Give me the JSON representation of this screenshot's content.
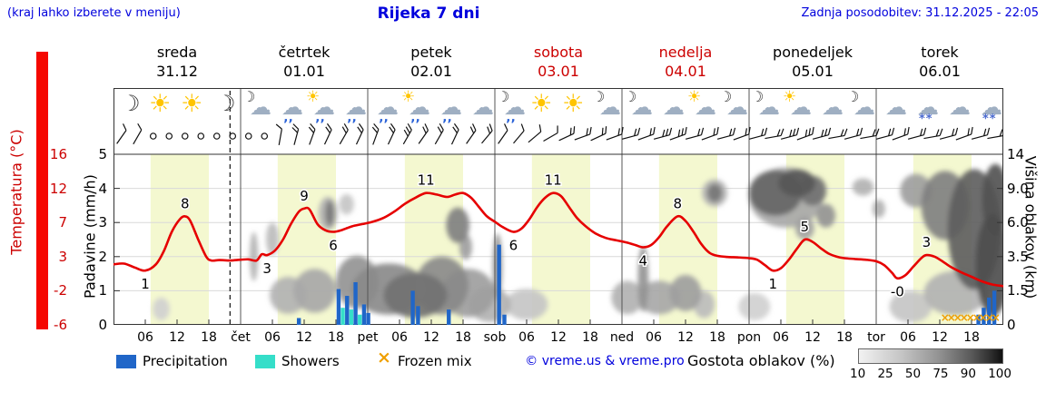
{
  "header": {
    "hint": "(kraj lahko izberete v meniju)",
    "title": "Rijeka 7 dni",
    "updated": "Zadnja posodobitev: 31.12.2025 - 22:05"
  },
  "axes": {
    "temp_title": "Temperatura (°C)",
    "temp_ticks": [
      "16",
      "12",
      "7",
      "3",
      "-2",
      "-6"
    ],
    "precip_title": "Padavine (mm/h)",
    "precip_ticks": [
      "5",
      "4",
      "3",
      "2",
      "1",
      "0"
    ],
    "cloud_title": "Višina oblakov (km)",
    "cloud_ticks": [
      "14",
      "9.0",
      "6.0",
      "3.5",
      "1.5",
      "0"
    ]
  },
  "days": [
    {
      "name": "sreda",
      "date": "31.12",
      "color": "#000000",
      "icons": [
        "moon",
        "sun",
        "sun",
        "moon"
      ]
    },
    {
      "name": "četrtek",
      "date": "01.01",
      "color": "#000000",
      "icons": [
        "moon-cloud",
        "rain",
        "sun-rain",
        "rain"
      ]
    },
    {
      "name": "petek",
      "date": "02.01",
      "color": "#000000",
      "icons": [
        "rain",
        "sun-rain",
        "rain",
        "cloud"
      ]
    },
    {
      "name": "sobota",
      "date": "03.01",
      "color": "#cc0000",
      "icons": [
        "moon-rain",
        "sun",
        "sun",
        "moon-cloud"
      ]
    },
    {
      "name": "nedelja",
      "date": "04.01",
      "color": "#cc0000",
      "icons": [
        "moon-cloud",
        "cloud",
        "sun-cloud",
        "moon-cloud"
      ]
    },
    {
      "name": "ponedeljek",
      "date": "05.01",
      "color": "#000000",
      "icons": [
        "moon-cloud",
        "sun-cloud",
        "cloud",
        "moon-cloud"
      ]
    },
    {
      "name": "torek",
      "date": "06.01",
      "color": "#000000",
      "icons": [
        "cloud",
        "snow",
        "cloud",
        "snow"
      ]
    }
  ],
  "legend": {
    "precipitation": "Precipitation",
    "showers": "Showers",
    "frozen": "Frozen mix",
    "frozen_symbol": "×",
    "copyright": "© vreme.us & vreme.pro",
    "cloud_density": "Gostota oblakov (%)",
    "density_ticks": [
      "10",
      "25",
      "50",
      "75",
      "90",
      "100"
    ]
  },
  "colors": {
    "blue_text": "#0000dd",
    "red_text": "#cc0000",
    "curve_red": "#e60000",
    "precip_blue": "#2066c8",
    "shower_cyan": "#35dec9",
    "frozen_orange": "#ef9f00",
    "band_yellow": "#f4f8d0",
    "strip_red": "#f50800",
    "grid_gray": "#d9d9d9"
  },
  "chart_data": {
    "type": "line",
    "title": "Rijeka 7 dni",
    "hours_total": 168,
    "temp_scale": {
      "min": -6,
      "max": 16
    },
    "mm_scale": {
      "min": 0,
      "max": 5
    },
    "km_ticks": [
      0,
      1.5,
      3.5,
      6,
      9,
      14
    ],
    "day_band_hours": [
      7,
      18
    ],
    "now_line_hour": 22,
    "temperature_points": [
      [
        0,
        1.8
      ],
      [
        2,
        1.9
      ],
      [
        4,
        1.4
      ],
      [
        6,
        1
      ],
      [
        8,
        1.8
      ],
      [
        9.5,
        3.5
      ],
      [
        11,
        6
      ],
      [
        12.5,
        7.6
      ],
      [
        13.5,
        8
      ],
      [
        14.5,
        7.4
      ],
      [
        16,
        5
      ],
      [
        17.5,
        2.8
      ],
      [
        18.5,
        2.3
      ],
      [
        20,
        2.35
      ],
      [
        22,
        2.3
      ],
      [
        24,
        2.4
      ],
      [
        25.5,
        2.45
      ],
      [
        27,
        2.3
      ],
      [
        28,
        3.1
      ],
      [
        29,
        3
      ],
      [
        30.5,
        3.6
      ],
      [
        32,
        5
      ],
      [
        33.5,
        7
      ],
      [
        35,
        8.6
      ],
      [
        36,
        9
      ],
      [
        37,
        8.9
      ],
      [
        38.5,
        7
      ],
      [
        40,
        6.2
      ],
      [
        41.5,
        6
      ],
      [
        43,
        6.2
      ],
      [
        45,
        6.7
      ],
      [
        47,
        7
      ],
      [
        49,
        7.3
      ],
      [
        51,
        7.8
      ],
      [
        53,
        8.6
      ],
      [
        55,
        9.6
      ],
      [
        57,
        10.4
      ],
      [
        59,
        11
      ],
      [
        61,
        10.8
      ],
      [
        63,
        10.5
      ],
      [
        64.5,
        10.8
      ],
      [
        66,
        11
      ],
      [
        67.5,
        10.4
      ],
      [
        69,
        9.2
      ],
      [
        70.5,
        8
      ],
      [
        72,
        7.3
      ],
      [
        73.5,
        6.6
      ],
      [
        75.5,
        6
      ],
      [
        77,
        6.4
      ],
      [
        78.5,
        7.6
      ],
      [
        80,
        9.2
      ],
      [
        81.5,
        10.4
      ],
      [
        83,
        11
      ],
      [
        84.5,
        10.6
      ],
      [
        86,
        9.2
      ],
      [
        87.5,
        7.8
      ],
      [
        89,
        6.8
      ],
      [
        91,
        5.8
      ],
      [
        93,
        5.2
      ],
      [
        95,
        4.9
      ],
      [
        97,
        4.6
      ],
      [
        98.5,
        4.3
      ],
      [
        100,
        4
      ],
      [
        101.5,
        4.3
      ],
      [
        103,
        5.3
      ],
      [
        104.5,
        6.7
      ],
      [
        106.5,
        8
      ],
      [
        108,
        7.4
      ],
      [
        109.5,
        6
      ],
      [
        111,
        4.4
      ],
      [
        112.5,
        3.3
      ],
      [
        114,
        2.9
      ],
      [
        116,
        2.75
      ],
      [
        118,
        2.7
      ],
      [
        120,
        2.6
      ],
      [
        121.5,
        2.4
      ],
      [
        123,
        1.7
      ],
      [
        124.5,
        1
      ],
      [
        126,
        1.3
      ],
      [
        127.5,
        2.4
      ],
      [
        129,
        3.8
      ],
      [
        130.5,
        5
      ],
      [
        132,
        4.7
      ],
      [
        133.5,
        3.9
      ],
      [
        135,
        3.2
      ],
      [
        136.5,
        2.8
      ],
      [
        138,
        2.6
      ],
      [
        140,
        2.5
      ],
      [
        142,
        2.4
      ],
      [
        144,
        2.2
      ],
      [
        145.5,
        1.7
      ],
      [
        147,
        0.7
      ],
      [
        148,
        0
      ],
      [
        149.5,
        0.4
      ],
      [
        151,
        1.5
      ],
      [
        152.5,
        2.6
      ],
      [
        153.5,
        3
      ],
      [
        155,
        2.8
      ],
      [
        156.5,
        2.2
      ],
      [
        158,
        1.5
      ],
      [
        160,
        0.8
      ],
      [
        162,
        0.2
      ],
      [
        164,
        -0.4
      ],
      [
        166,
        -0.8
      ],
      [
        168,
        -1
      ]
    ],
    "temperature_labels": [
      {
        "h": 6,
        "t": 1,
        "text": "1",
        "pos": "below"
      },
      {
        "h": 13.5,
        "t": 8,
        "text": "8",
        "pos": "above"
      },
      {
        "h": 29,
        "t": 3,
        "text": "3",
        "pos": "below"
      },
      {
        "h": 36,
        "t": 9,
        "text": "9",
        "pos": "above"
      },
      {
        "h": 41.5,
        "t": 6,
        "text": "6",
        "pos": "below"
      },
      {
        "h": 59,
        "t": 11,
        "text": "11",
        "pos": "above"
      },
      {
        "h": 75.5,
        "t": 6,
        "text": "6",
        "pos": "below"
      },
      {
        "h": 83,
        "t": 11,
        "text": "11",
        "pos": "above"
      },
      {
        "h": 100,
        "t": 4,
        "text": "4",
        "pos": "below"
      },
      {
        "h": 106.5,
        "t": 8,
        "text": "8",
        "pos": "above"
      },
      {
        "h": 124.5,
        "t": 1,
        "text": "1",
        "pos": "below"
      },
      {
        "h": 130.5,
        "t": 5,
        "text": "5",
        "pos": "above"
      },
      {
        "h": 148,
        "t": 0,
        "text": "-0",
        "pos": "below"
      },
      {
        "h": 153.5,
        "t": 3,
        "text": "3",
        "pos": "above"
      }
    ],
    "precip_bars": [
      {
        "h": 35,
        "v": 0.2,
        "kind": "rain"
      },
      {
        "h": 42.5,
        "v": 1.05,
        "kind": "rain"
      },
      {
        "h": 43.3,
        "v": 0.5,
        "kind": "shower"
      },
      {
        "h": 44.1,
        "v": 0.85,
        "kind": "rain"
      },
      {
        "h": 44.9,
        "v": 0.45,
        "kind": "shower"
      },
      {
        "h": 45.7,
        "v": 1.25,
        "kind": "rain"
      },
      {
        "h": 46.5,
        "v": 0.3,
        "kind": "shower"
      },
      {
        "h": 47.3,
        "v": 0.6,
        "kind": "rain"
      },
      {
        "h": 48.1,
        "v": 0.35,
        "kind": "rain"
      },
      {
        "h": 56.5,
        "v": 1.0,
        "kind": "rain"
      },
      {
        "h": 57.5,
        "v": 0.55,
        "kind": "rain"
      },
      {
        "h": 63.3,
        "v": 0.45,
        "kind": "rain"
      },
      {
        "h": 72.8,
        "v": 2.35,
        "kind": "rain"
      },
      {
        "h": 73.8,
        "v": 0.3,
        "kind": "rain"
      },
      {
        "h": 163.3,
        "v": 0.3,
        "kind": "rain"
      },
      {
        "h": 164.3,
        "v": 0.5,
        "kind": "rain"
      },
      {
        "h": 165.3,
        "v": 0.8,
        "kind": "rain"
      },
      {
        "h": 166.3,
        "v": 1.0,
        "kind": "rain"
      }
    ],
    "frozen_mix_hours": [
      157,
      158.2,
      159.4,
      160.6,
      161.8,
      163,
      164.2,
      165.4,
      166.6
    ],
    "cloud_blobs": [
      [
        9,
        0.7,
        1.6,
        0.5,
        25
      ],
      [
        26.5,
        3.5,
        0.8,
        1.6,
        40
      ],
      [
        30,
        4.8,
        1.2,
        1.2,
        35
      ],
      [
        33,
        1.3,
        3.5,
        0.9,
        40
      ],
      [
        38,
        1.5,
        4,
        1.1,
        45
      ],
      [
        40.5,
        6.8,
        1.8,
        1.4,
        40
      ],
      [
        40.8,
        6.8,
        0.8,
        1.1,
        70
      ],
      [
        44,
        7.6,
        1.4,
        0.9,
        30
      ],
      [
        46,
        2,
        4,
        1.4,
        55
      ],
      [
        52,
        1.6,
        7,
        1.3,
        60
      ],
      [
        57,
        1.3,
        6,
        1.1,
        72
      ],
      [
        62,
        1.8,
        5,
        1.5,
        60
      ],
      [
        67,
        1.4,
        5,
        1.2,
        50
      ],
      [
        71,
        0.9,
        4,
        0.8,
        40
      ],
      [
        65,
        5.8,
        2.2,
        1.4,
        65
      ],
      [
        66.5,
        4.2,
        1.2,
        0.9,
        50
      ],
      [
        72.5,
        2.9,
        0.9,
        2,
        55
      ],
      [
        78,
        0.9,
        4,
        0.7,
        30
      ],
      [
        97,
        1.2,
        3,
        0.8,
        40
      ],
      [
        100,
        2.2,
        1,
        1.8,
        55
      ],
      [
        103,
        1.2,
        4,
        0.8,
        45
      ],
      [
        108,
        1.4,
        3,
        0.9,
        50
      ],
      [
        111.5,
        0.9,
        2,
        0.6,
        35
      ],
      [
        113.5,
        8.6,
        1.4,
        0.9,
        70
      ],
      [
        113.5,
        8.6,
        2.4,
        1.4,
        40
      ],
      [
        121,
        0.8,
        3,
        0.6,
        25
      ],
      [
        125,
        8.6,
        5,
        2.4,
        78
      ],
      [
        129,
        9.8,
        3.5,
        1.7,
        85
      ],
      [
        132,
        8.8,
        2.6,
        1.6,
        72
      ],
      [
        127,
        8.2,
        7,
        3,
        45
      ],
      [
        134.5,
        6.6,
        1.8,
        1,
        55
      ],
      [
        130.5,
        5.6,
        1.8,
        0.9,
        48
      ],
      [
        141.5,
        9.2,
        2,
        1,
        40
      ],
      [
        144.5,
        7.2,
        1.2,
        0.8,
        40
      ],
      [
        151.5,
        8.8,
        3,
        1.8,
        50
      ],
      [
        157,
        7.5,
        4.5,
        3.2,
        65
      ],
      [
        162.5,
        5.5,
        5,
        4.5,
        82
      ],
      [
        166,
        3,
        3.2,
        3,
        90
      ],
      [
        166.5,
        8,
        2.5,
        3.5,
        88
      ],
      [
        159,
        1.4,
        6,
        1.1,
        40
      ],
      [
        150.5,
        0.8,
        4,
        0.7,
        30
      ]
    ],
    "wind_barbs": [
      [
        1.5,
        -55,
        1
      ],
      [
        4.5,
        -60,
        1
      ],
      [
        7.5,
        null,
        0
      ],
      [
        10.5,
        null,
        0
      ],
      [
        13.5,
        null,
        0
      ],
      [
        16.5,
        null,
        0
      ],
      [
        19.5,
        null,
        0
      ],
      [
        22.5,
        null,
        0
      ],
      [
        25.5,
        null,
        0
      ],
      [
        28.5,
        null,
        0
      ],
      [
        31.5,
        -80,
        1
      ],
      [
        34.5,
        -75,
        2
      ],
      [
        37.5,
        -70,
        2
      ],
      [
        40.5,
        -65,
        2
      ],
      [
        43.5,
        -60,
        2
      ],
      [
        46.5,
        -65,
        2
      ],
      [
        49.5,
        -70,
        2
      ],
      [
        52.5,
        -65,
        2
      ],
      [
        55.5,
        -60,
        3
      ],
      [
        58.5,
        -55,
        2
      ],
      [
        61.5,
        -60,
        2
      ],
      [
        64.5,
        -65,
        2
      ],
      [
        67.5,
        -55,
        2
      ],
      [
        70.5,
        -50,
        2
      ],
      [
        73.5,
        -55,
        1
      ],
      [
        76.5,
        -50,
        1
      ],
      [
        79.5,
        -40,
        1
      ],
      [
        82.5,
        -30,
        1
      ],
      [
        85.5,
        -25,
        2
      ],
      [
        88.5,
        -20,
        2
      ],
      [
        91.5,
        -25,
        2
      ],
      [
        94.5,
        -20,
        2
      ],
      [
        97.5,
        -15,
        2
      ],
      [
        100.5,
        -20,
        2
      ],
      [
        103.5,
        -15,
        3
      ],
      [
        106.5,
        -20,
        3
      ],
      [
        109.5,
        -15,
        2
      ],
      [
        112.5,
        -20,
        2
      ],
      [
        115.5,
        -15,
        2
      ],
      [
        118.5,
        -20,
        2
      ],
      [
        121.5,
        -15,
        2
      ],
      [
        124.5,
        -10,
        2
      ],
      [
        127.5,
        -15,
        3
      ],
      [
        130.5,
        -20,
        3
      ],
      [
        133.5,
        -15,
        3
      ],
      [
        136.5,
        -10,
        2
      ],
      [
        139.5,
        -15,
        2
      ],
      [
        142.5,
        -10,
        2
      ],
      [
        145.5,
        -15,
        2
      ],
      [
        148.5,
        -20,
        2
      ],
      [
        151.5,
        -15,
        2
      ],
      [
        154.5,
        -10,
        2
      ],
      [
        157.5,
        -15,
        2
      ],
      [
        160.5,
        -20,
        2
      ],
      [
        163.5,
        -15,
        2
      ],
      [
        166.5,
        -10,
        2
      ]
    ],
    "x_tick_labels": [
      {
        "h": 6,
        "text": "06"
      },
      {
        "h": 12,
        "text": "12"
      },
      {
        "h": 18,
        "text": "18"
      },
      {
        "h": 24,
        "text": "čet"
      },
      {
        "h": 30,
        "text": "06"
      },
      {
        "h": 36,
        "text": "12"
      },
      {
        "h": 42,
        "text": "18"
      },
      {
        "h": 48,
        "text": "pet"
      },
      {
        "h": 54,
        "text": "06"
      },
      {
        "h": 60,
        "text": "12"
      },
      {
        "h": 66,
        "text": "18"
      },
      {
        "h": 72,
        "text": "sob"
      },
      {
        "h": 78,
        "text": "06"
      },
      {
        "h": 84,
        "text": "12"
      },
      {
        "h": 90,
        "text": "18"
      },
      {
        "h": 96,
        "text": "ned"
      },
      {
        "h": 102,
        "text": "06"
      },
      {
        "h": 108,
        "text": "12"
      },
      {
        "h": 114,
        "text": "18"
      },
      {
        "h": 120,
        "text": "pon"
      },
      {
        "h": 126,
        "text": "06"
      },
      {
        "h": 132,
        "text": "12"
      },
      {
        "h": 138,
        "text": "18"
      },
      {
        "h": 144,
        "text": "tor"
      },
      {
        "h": 150,
        "text": "06"
      },
      {
        "h": 156,
        "text": "12"
      },
      {
        "h": 162,
        "text": "18"
      }
    ]
  }
}
